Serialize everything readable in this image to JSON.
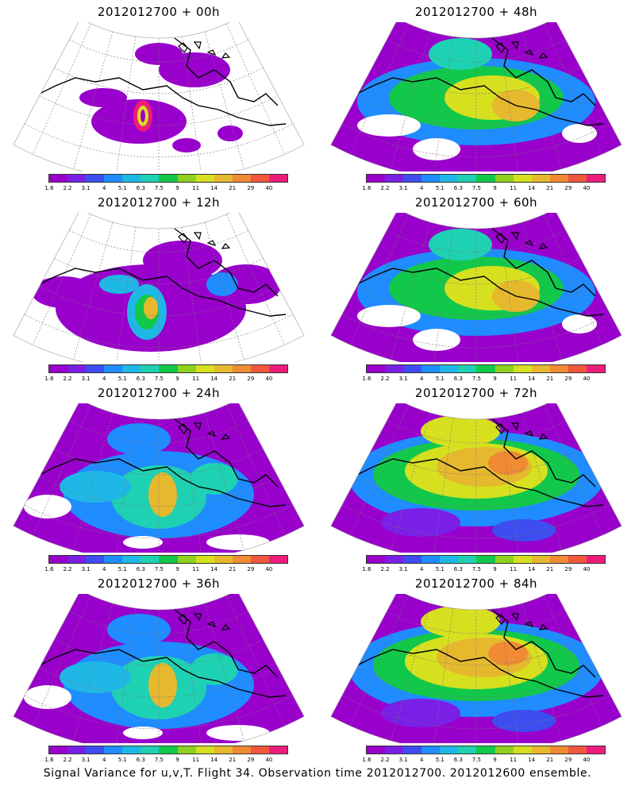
{
  "figure": {
    "caption": "Signal Variance for u,v,T. Flight 34. Observation time 2012012700. 2012012600 ensemble."
  },
  "colorbar": {
    "labels": [
      "1.6",
      "2.2",
      "3.1",
      "4",
      "5.1",
      "6.3",
      "7.5",
      "9",
      "11",
      "14",
      "21",
      "29",
      "40"
    ],
    "colors": [
      "#9900cc",
      "#7a1fe6",
      "#3d4df0",
      "#1f8cff",
      "#1fb8e6",
      "#1fd1b3",
      "#12c84a",
      "#8ed11f",
      "#d6e01f",
      "#e6b82e",
      "#f08a33",
      "#f0573d",
      "#ee1c7a"
    ]
  },
  "panels": [
    {
      "id": "p00",
      "title": "2012012700 + 00h",
      "coverage": "low"
    },
    {
      "id": "p12",
      "title": "2012012700 + 12h",
      "coverage": "low-mid"
    },
    {
      "id": "p24",
      "title": "2012012700 + 24h",
      "coverage": "mid"
    },
    {
      "id": "p36",
      "title": "2012012700 + 36h",
      "coverage": "mid"
    },
    {
      "id": "p48",
      "title": "2012012700 + 48h",
      "coverage": "high"
    },
    {
      "id": "p60",
      "title": "2012012700 + 60h",
      "coverage": "high"
    },
    {
      "id": "p72",
      "title": "2012012700 + 72h",
      "coverage": "very-high"
    },
    {
      "id": "p84",
      "title": "2012012700 + 84h",
      "coverage": "very-high"
    }
  ]
}
